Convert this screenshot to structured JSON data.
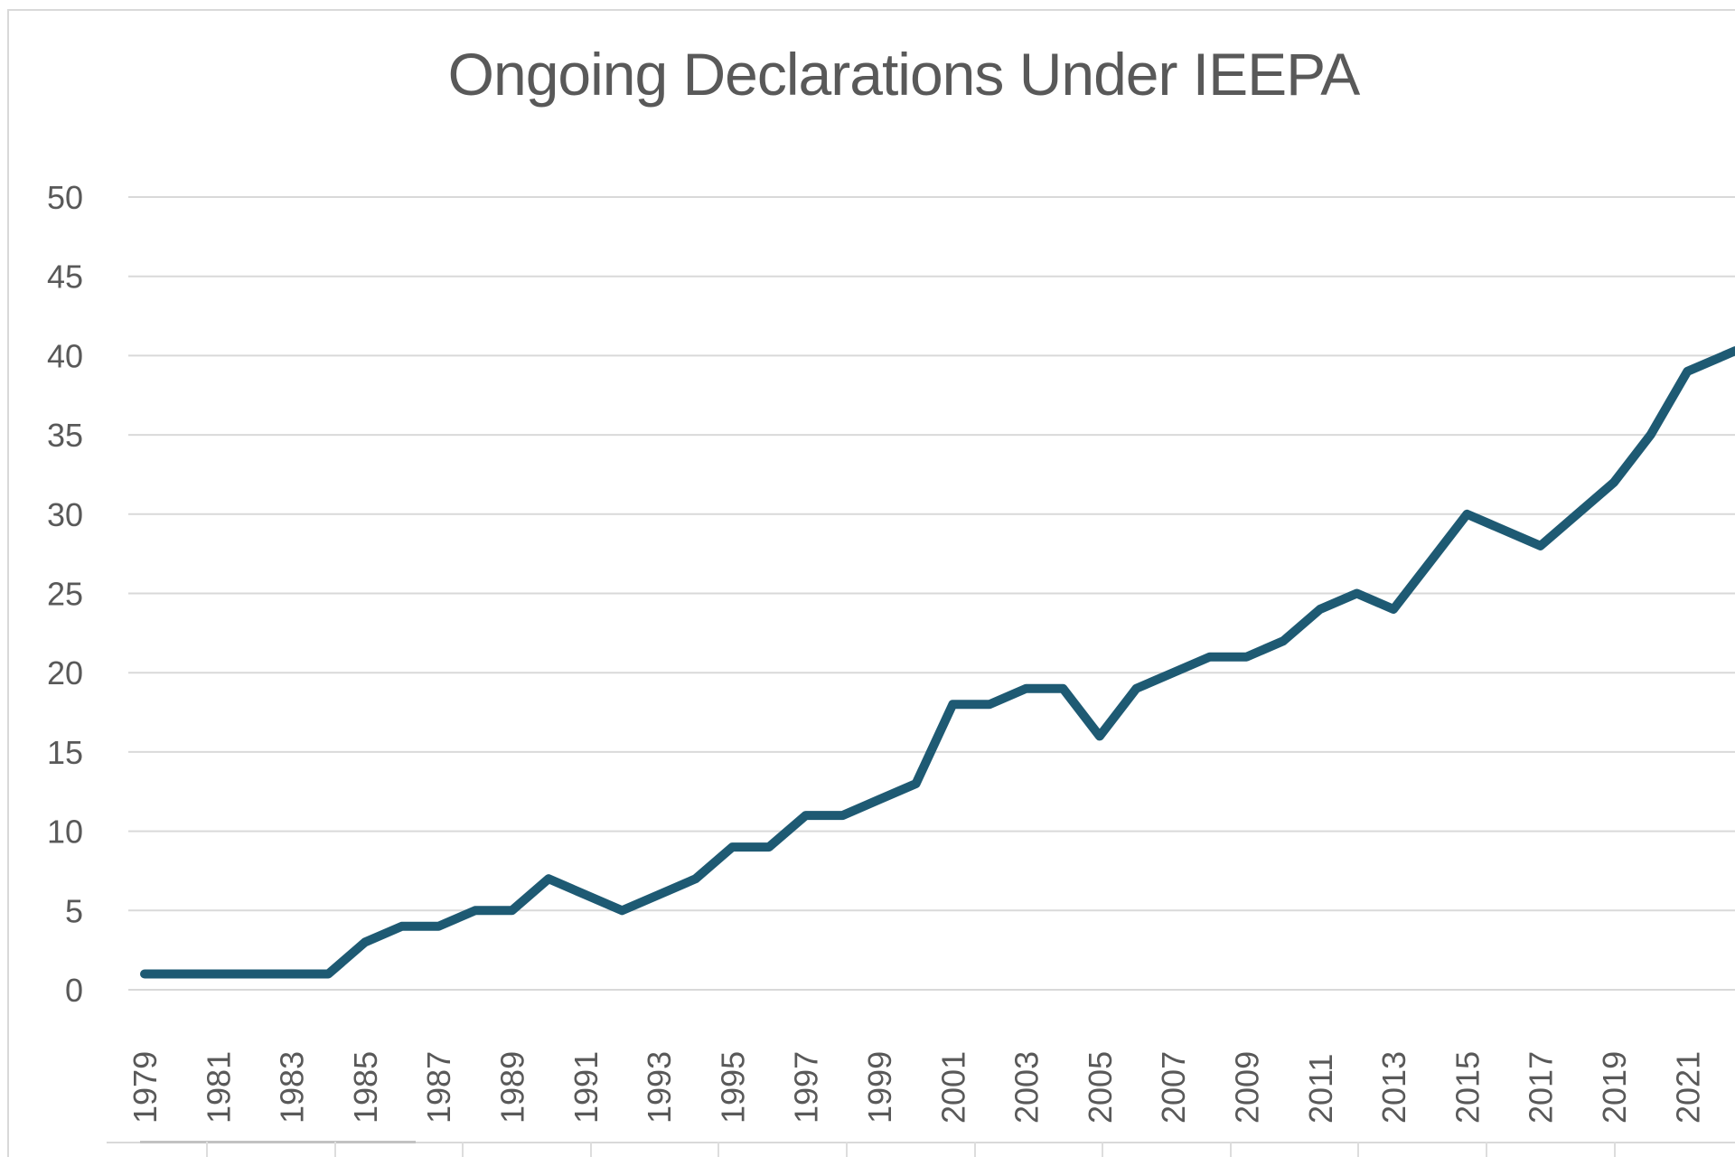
{
  "page": {
    "background": "#ffffff"
  },
  "chart": {
    "title": "Ongoing Declarations Under IEEPA",
    "title_color": "#595959",
    "axis_text_color": "#595959",
    "gridline_color": "#d9d9d9",
    "line_color": "#1e5a73",
    "border_color": "#d9d9d9"
  },
  "chart_data": {
    "type": "line",
    "title": "Ongoing Declarations Under IEEPA",
    "xlabel": "",
    "ylabel": "",
    "grid": true,
    "legend": false,
    "ylim": [
      0,
      50
    ],
    "ytick_step": 5,
    "yticks": [
      0,
      5,
      10,
      15,
      20,
      25,
      30,
      35,
      40,
      45,
      50
    ],
    "xtick_labels": [
      "1979",
      "1981",
      "1983",
      "1985",
      "1987",
      "1989",
      "1991",
      "1993",
      "1995",
      "1997",
      "1999",
      "2001",
      "2003",
      "2005",
      "2007",
      "2009",
      "2011",
      "2013",
      "2015",
      "2017",
      "2019",
      "2021"
    ],
    "x": [
      1979,
      1980,
      1981,
      1982,
      1983,
      1984,
      1985,
      1986,
      1987,
      1988,
      1989,
      1990,
      1991,
      1992,
      1993,
      1994,
      1995,
      1996,
      1997,
      1998,
      1999,
      2000,
      2001,
      2002,
      2003,
      2004,
      2005,
      2006,
      2007,
      2008,
      2009,
      2010,
      2011,
      2012,
      2013,
      2014,
      2015,
      2016,
      2017,
      2018,
      2019,
      2020,
      2021,
      2022
    ],
    "series": [
      {
        "name": "Ongoing declarations under IEEPA",
        "values": [
          1,
          1,
          1,
          1,
          1,
          1,
          3,
          4,
          4,
          5,
          5,
          7,
          6,
          5,
          6,
          7,
          9,
          9,
          11,
          11,
          12,
          13,
          18,
          18,
          19,
          19,
          16,
          19,
          20,
          21,
          21,
          22,
          24,
          25,
          24,
          27,
          30,
          29,
          28,
          30,
          32,
          35,
          39,
          40
        ]
      }
    ],
    "note_line_clipped_at_right_edge": true
  }
}
